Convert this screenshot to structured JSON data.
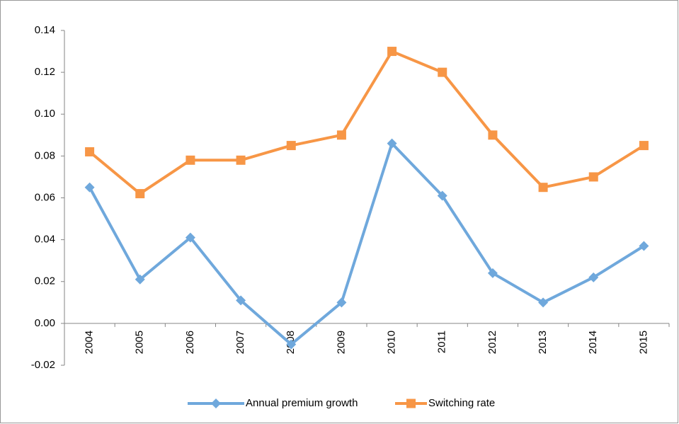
{
  "chart_data": {
    "type": "line",
    "categories": [
      "2004",
      "2005",
      "2006",
      "2007",
      "2008",
      "2009",
      "2010",
      "2011",
      "2012",
      "2013",
      "2014",
      "2015"
    ],
    "series": [
      {
        "name": "Annual premium growth",
        "color": "#6fa8dc",
        "marker": "diamond",
        "values": [
          0.065,
          0.021,
          0.041,
          0.011,
          -0.01,
          0.01,
          0.086,
          0.061,
          0.024,
          0.01,
          0.022,
          0.037
        ]
      },
      {
        "name": "Switching rate",
        "color": "#f79646",
        "marker": "square",
        "values": [
          0.082,
          0.062,
          0.078,
          0.078,
          0.085,
          0.09,
          0.13,
          0.12,
          0.09,
          0.065,
          0.07,
          0.085
        ]
      }
    ],
    "ylim": [
      -0.02,
      0.14
    ],
    "yticks": [
      -0.02,
      {
        "value": 0,
        "label": "0.00"
      },
      0.02,
      0.04,
      0.06,
      0.08,
      {
        "value": 0.1,
        "label": "0.10"
      },
      0.12,
      0.14
    ],
    "legend": "bottom"
  }
}
